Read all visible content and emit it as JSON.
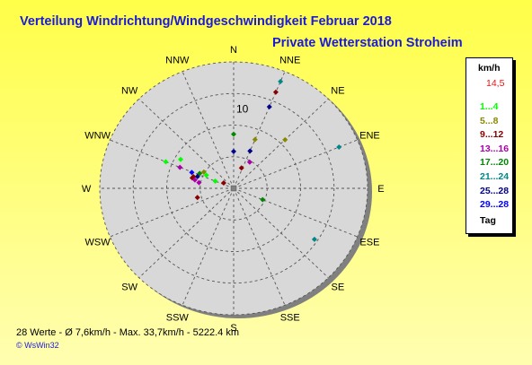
{
  "chart_data": {
    "type": "scatter",
    "subtype": "wind-rose",
    "title": "Verteilung Windrichtung/Windgeschwindigkeit  Februar 2018",
    "subtitle": "Private Wetterstation Stroheim",
    "directions": [
      "N",
      "NNE",
      "NE",
      "ENE",
      "E",
      "ESE",
      "SE",
      "SSE",
      "S",
      "SSW",
      "SW",
      "WSW",
      "W",
      "WNW",
      "NW",
      "NNW"
    ],
    "radial_tick_label": "10",
    "radial_scale": {
      "max": 17.5,
      "rings": 4
    },
    "legend": {
      "title": "km/h",
      "value": "14,5",
      "value_color": "#ee1111",
      "classes": [
        {
          "label": "1...4",
          "color": "#00ff00"
        },
        {
          "label": "5...8",
          "color": "#888800"
        },
        {
          "label": "9...12",
          "color": "#880000"
        },
        {
          "label": "13...16",
          "color": "#aa00aa"
        },
        {
          "label": "17...20",
          "color": "#008800"
        },
        {
          "label": "21...24",
          "color": "#008888"
        },
        {
          "label": "25...28",
          "color": "#000088"
        },
        {
          "label": "29...28",
          "color": "#0000ff"
        }
      ],
      "last": "Tag"
    },
    "points": [
      {
        "dir": 22.5,
        "r": 16.0,
        "cls": 5
      },
      {
        "dir": 22.5,
        "r": 14.4,
        "cls": 2
      },
      {
        "dir": 22.5,
        "r": 12.2,
        "cls": 6
      },
      {
        "dir": 22.5,
        "r": 7.3,
        "cls": 1
      },
      {
        "dir": 22.5,
        "r": 5.6,
        "cls": 6
      },
      {
        "dir": 45,
        "r": 9.5,
        "cls": 1
      },
      {
        "dir": 67.5,
        "r": 14.9,
        "cls": 5
      },
      {
        "dir": 112.5,
        "r": 4.1,
        "cls": 4
      },
      {
        "dir": 123.75,
        "r": 12.7,
        "cls": 5
      },
      {
        "dir": 0,
        "r": 7.5,
        "cls": 4
      },
      {
        "dir": 0,
        "r": 5.1,
        "cls": 6
      },
      {
        "dir": 300,
        "r": 8.0,
        "cls": 0
      },
      {
        "dir": 292.5,
        "r": 9.6,
        "cls": 0
      },
      {
        "dir": 292.5,
        "r": 7.6,
        "cls": 3
      },
      {
        "dir": 295,
        "r": 4.9,
        "cls": 4
      },
      {
        "dir": 300,
        "r": 4.5,
        "cls": 1
      },
      {
        "dir": 297,
        "r": 4.0,
        "cls": 0
      },
      {
        "dir": 292,
        "r": 5.9,
        "cls": 7
      },
      {
        "dir": 289,
        "r": 5.0,
        "cls": 6
      },
      {
        "dir": 287,
        "r": 5.5,
        "cls": 2
      },
      {
        "dir": 285,
        "r": 5.6,
        "cls": 2
      },
      {
        "dir": 283,
        "r": 5.2,
        "cls": 3
      },
      {
        "dir": 280,
        "r": 4.6,
        "cls": 3
      },
      {
        "dir": 292.5,
        "r": 2.6,
        "cls": 0
      },
      {
        "dir": 300,
        "r": 1.5,
        "cls": 2
      },
      {
        "dir": 255,
        "r": 4.9,
        "cls": 2
      },
      {
        "dir": 20,
        "r": 3.0,
        "cls": 2
      },
      {
        "dir": 30,
        "r": 4.2,
        "cls": 3
      }
    ]
  },
  "footer": {
    "stats": "28 Werte   -   Ø 7,6km/h  -  Max. 33,7km/h  -   5222.4 km",
    "credit": "© WsWin32"
  }
}
